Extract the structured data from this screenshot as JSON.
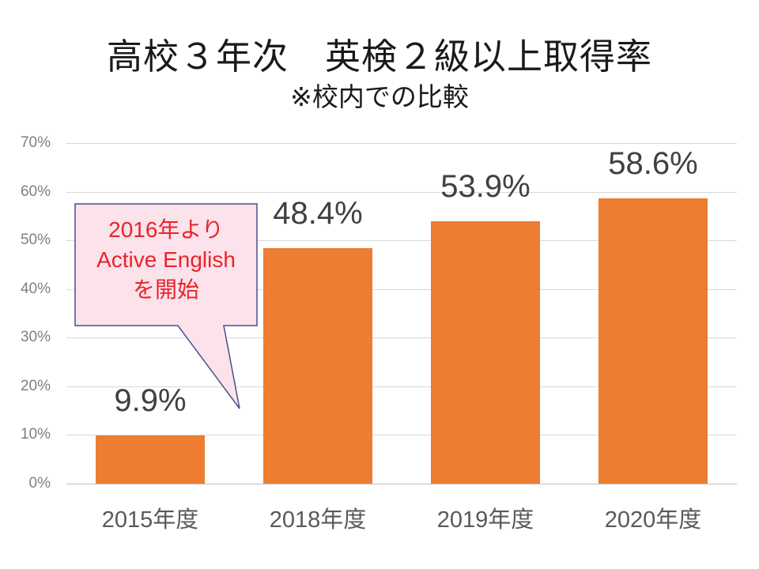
{
  "chart_data": {
    "type": "bar",
    "title": "高校３年次　英検２級以上取得率",
    "subtitle": "※校内での比較",
    "categories": [
      "2015年度",
      "2018年度",
      "2019年度",
      "2020年度"
    ],
    "values": [
      9.9,
      48.4,
      53.9,
      58.6
    ],
    "value_labels": [
      "9.9%",
      "48.4%",
      "53.9%",
      "58.6%"
    ],
    "xlabel": "",
    "ylabel": "",
    "ylim": [
      0,
      70
    ],
    "yticks": [
      "0%",
      "10%",
      "20%",
      "30%",
      "40%",
      "50%",
      "60%",
      "70%"
    ],
    "grid": true,
    "legend": false,
    "bar_color": "#ed7d31",
    "value_label_color": "#404040",
    "axis_label_color": "#595959",
    "tick_label_color": "#7f7f7f",
    "gridline_color": "#d9d9d9"
  },
  "callout": {
    "lines": [
      "2016年より",
      "Active English",
      "を開始"
    ],
    "text_color": "#e8242b",
    "fill_color": "#fce2ea",
    "border_color": "#44518f"
  }
}
